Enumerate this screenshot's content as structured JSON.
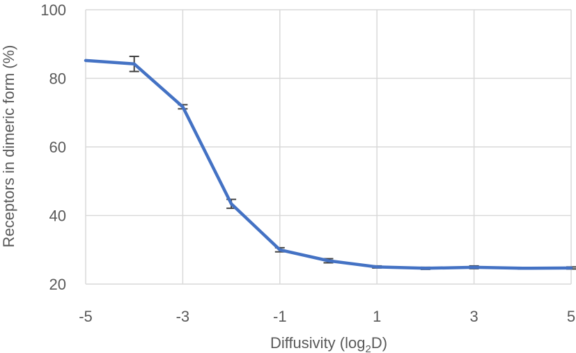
{
  "chart_data": {
    "type": "line",
    "xlabel": {
      "prefix": "Diffusivity (log",
      "subscript": "2",
      "suffix": "D)"
    },
    "ylabel": "Receptors in dimeric form (%)",
    "xlim": [
      -5,
      5
    ],
    "ylim": [
      20,
      100
    ],
    "x_ticks": [
      -5,
      -3,
      -1,
      1,
      3,
      5
    ],
    "x_tick_labels": [
      "-5",
      "-3",
      "-1",
      "1",
      "3",
      "5"
    ],
    "y_ticks": [
      20,
      40,
      60,
      80,
      100
    ],
    "y_tick_labels": [
      "20",
      "40",
      "60",
      "80",
      "100"
    ],
    "grid": true,
    "legend": "none",
    "series": [
      {
        "color": "#4472C4",
        "points": [
          {
            "x": -5,
            "y": 85.2,
            "err": 0
          },
          {
            "x": -4,
            "y": 84.2,
            "err": 2.2
          },
          {
            "x": -3,
            "y": 71.7,
            "err": 0.6
          },
          {
            "x": -2,
            "y": 43.4,
            "err": 1.3
          },
          {
            "x": -1,
            "y": 30.0,
            "err": 0.6
          },
          {
            "x": 0,
            "y": 26.8,
            "err": 0.6
          },
          {
            "x": 1,
            "y": 25.0,
            "err": 0.3
          },
          {
            "x": 2,
            "y": 24.6,
            "err": 0.3
          },
          {
            "x": 3,
            "y": 24.9,
            "err": 0.4
          },
          {
            "x": 4,
            "y": 24.6,
            "err": 0.2
          },
          {
            "x": 5,
            "y": 24.7,
            "err": 0.3
          }
        ]
      }
    ],
    "error_bar_color": "#404040",
    "grid_color": "#D9D9D9"
  }
}
